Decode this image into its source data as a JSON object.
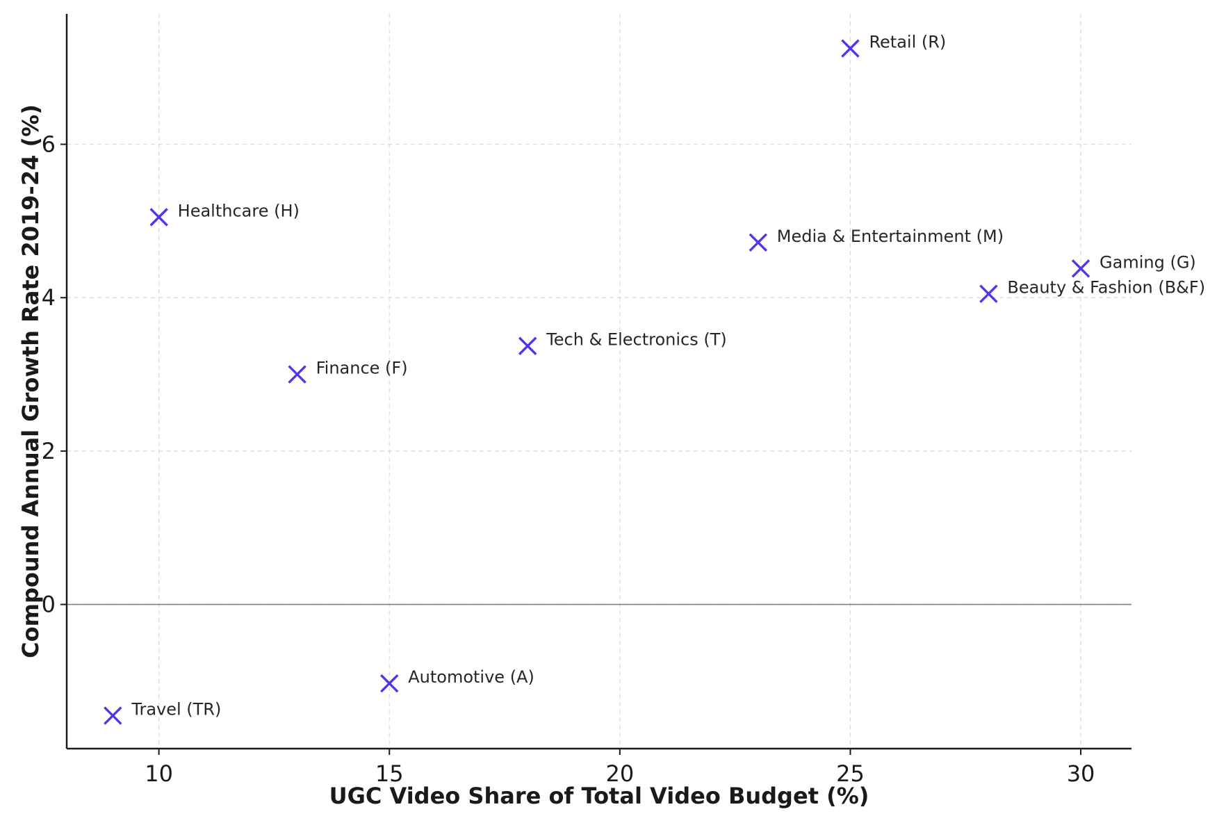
{
  "chart_data": {
    "type": "scatter",
    "title": "",
    "xlabel": "UGC Video Share of Total Video Budget (%)",
    "ylabel": "Compound Annual Growth Rate 2019-24 (%)",
    "xlim": [
      8,
      31.1
    ],
    "ylim": [
      -1.88,
      7.7
    ],
    "xticks": [
      10,
      15,
      20,
      25,
      30
    ],
    "yticks": [
      0,
      2,
      4,
      6
    ],
    "grid": true,
    "reference_line_y": 0,
    "marker": "x",
    "marker_color": "#5533e8",
    "points": [
      {
        "label": "Travel (TR)",
        "x": 9,
        "y": -1.45
      },
      {
        "label": "Healthcare (H)",
        "x": 10,
        "y": 5.05
      },
      {
        "label": "Finance (F)",
        "x": 13,
        "y": 3.0
      },
      {
        "label": "Automotive (A)",
        "x": 15,
        "y": -1.03
      },
      {
        "label": "Tech & Electronics (T)",
        "x": 18,
        "y": 3.37
      },
      {
        "label": "Media & Entertainment (M)",
        "x": 23,
        "y": 4.72
      },
      {
        "label": "Retail (R)",
        "x": 25,
        "y": 7.25
      },
      {
        "label": "Beauty & Fashion (B&F)",
        "x": 28,
        "y": 4.05
      },
      {
        "label": "Gaming (G)",
        "x": 30,
        "y": 4.38
      }
    ]
  }
}
